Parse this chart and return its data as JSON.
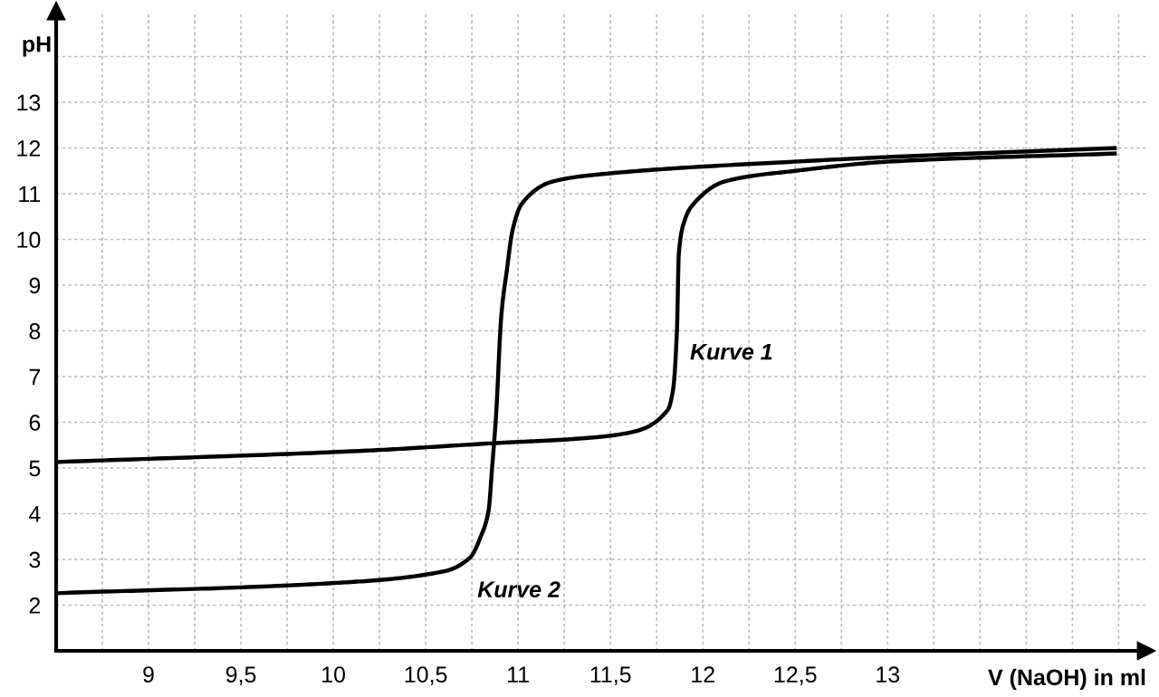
{
  "chart_data": {
    "type": "line",
    "xlabel": "V (NaOH) in ml",
    "ylabel": "pH",
    "series": [
      {
        "name": "Kurve 1",
        "color": "#000000",
        "x": [
          8.5,
          10.18,
          10.9,
          11.32,
          11.6,
          11.81,
          11.84,
          11.86,
          11.87,
          11.9,
          11.94,
          12.12,
          12.5,
          13.0,
          14.24
        ],
        "values": [
          5.13,
          5.38,
          5.55,
          5.64,
          5.77,
          6.27,
          6.75,
          8.04,
          9.69,
          10.4,
          10.73,
          11.27,
          11.5,
          11.7,
          11.88
        ]
      },
      {
        "name": "Kurve 2",
        "color": "#000000",
        "x": [
          8.5,
          9.99,
          10.6,
          10.74,
          10.8,
          10.84,
          10.86,
          10.88,
          10.91,
          10.94,
          10.97,
          11.02,
          11.19,
          11.51,
          12.49,
          12.99,
          14.24
        ],
        "values": [
          2.26,
          2.48,
          2.74,
          3.04,
          3.52,
          4.06,
          5.04,
          6.1,
          8.37,
          9.35,
          10.2,
          10.78,
          11.27,
          11.45,
          11.7,
          11.8,
          12.0
        ]
      }
    ],
    "xlim": [
      8.5,
      14.4
    ],
    "ylim": [
      1,
      15
    ],
    "xticks": [
      {
        "value": 8.75,
        "label": null
      },
      9,
      {
        "value": 9.25,
        "label": null
      },
      {
        "value": 9.5,
        "label": "9,5"
      },
      {
        "value": 9.75,
        "label": null
      },
      10,
      {
        "value": 10.25,
        "label": null
      },
      {
        "value": 10.5,
        "label": "10,5"
      },
      {
        "value": 10.75,
        "label": null
      },
      11,
      {
        "value": 11.25,
        "label": null
      },
      {
        "value": 11.5,
        "label": "11,5"
      },
      {
        "value": 11.75,
        "label": null
      },
      12,
      {
        "value": 12.25,
        "label": null
      },
      {
        "value": 12.5,
        "label": "12,5"
      },
      {
        "value": 12.75,
        "label": null
      },
      13,
      {
        "value": 13.25,
        "label": null
      },
      {
        "value": 13.5,
        "label": null
      },
      {
        "value": 13.75,
        "label": null
      },
      {
        "value": 14,
        "label": null
      },
      {
        "value": 14.25,
        "label": null
      }
    ],
    "yticks": [
      2,
      3,
      4,
      5,
      6,
      7,
      8,
      9,
      10,
      11,
      12,
      13,
      {
        "value": 14,
        "label": null
      }
    ],
    "grid": true,
    "marker": "none",
    "line_style": "solid"
  }
}
